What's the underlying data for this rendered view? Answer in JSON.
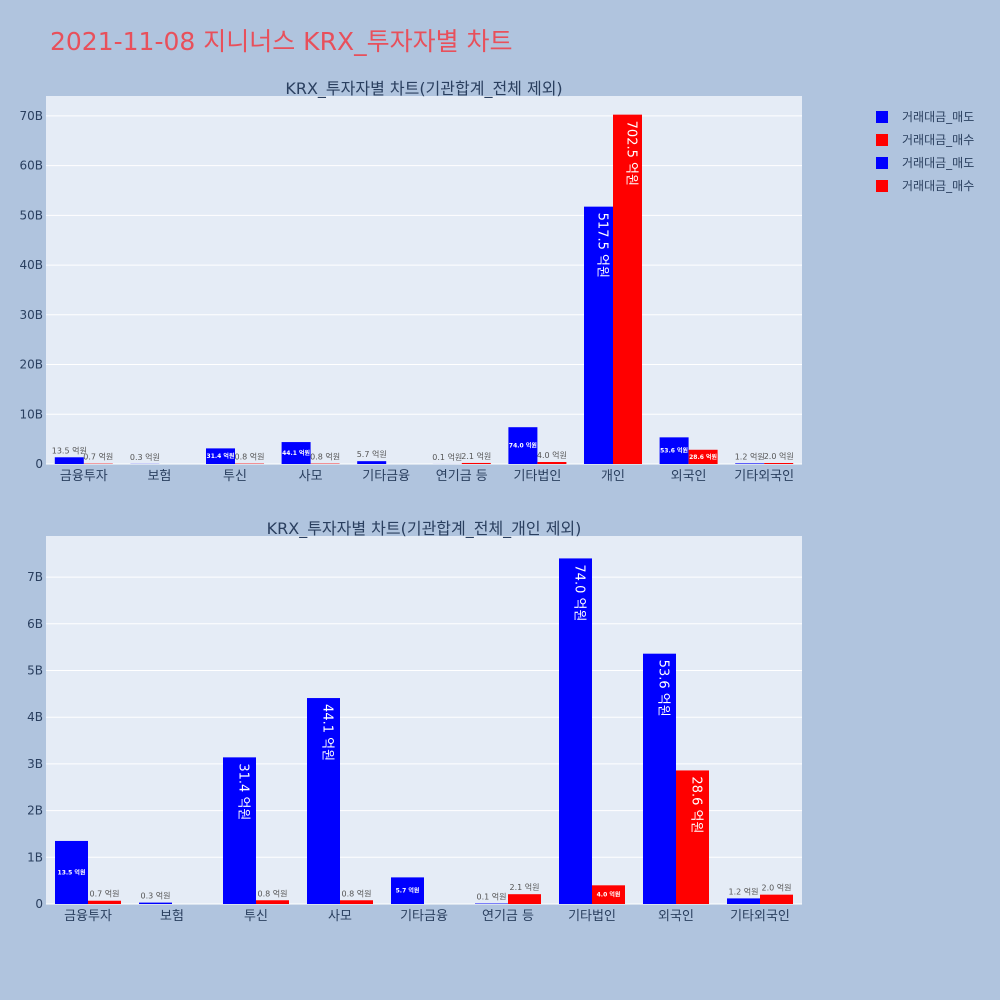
{
  "page_title": "2021-11-08 지니너스 KRX_투자자별 차트",
  "colors": {
    "sell": "#0000ff",
    "buy": "#ff0000",
    "background": "#b0c4de",
    "plot_bg": "#e5ecf6",
    "title": "#e8505b",
    "text": "#2a3f5f"
  },
  "legend": [
    {
      "label": "거래대금_매도",
      "color": "#0000ff"
    },
    {
      "label": "거래대금_매수",
      "color": "#ff0000"
    },
    {
      "label": "거래대금_매도",
      "color": "#0000ff"
    },
    {
      "label": "거래대금_매수",
      "color": "#ff0000"
    }
  ],
  "chart_data": [
    {
      "type": "bar",
      "title": "KRX_투자자별 차트(기관합계_전체 제외)",
      "categories": [
        "금융투자",
        "보험",
        "투신",
        "사모",
        "기타금융",
        "연기금 등",
        "기타법인",
        "개인",
        "외국인",
        "기타외국인"
      ],
      "series": [
        {
          "name": "거래대금_매도",
          "color": "#0000ff",
          "values": [
            1350000000,
            30000000,
            3140000000,
            4410000000,
            570000000,
            10000000,
            7400000000,
            51750000000,
            5360000000,
            120000000
          ],
          "labels": [
            "13.5 억원",
            "0.3 억원",
            "31.4 억원",
            "44.1 억원",
            "5.7 억원",
            "0.1 억원",
            "74.0 억원",
            "517.5 억원",
            "53.6 억원",
            "1.2 억원"
          ]
        },
        {
          "name": "거래대금_매수",
          "color": "#ff0000",
          "values": [
            70000000,
            0,
            80000000,
            80000000,
            0,
            210000000,
            400000000,
            70250000000,
            2860000000,
            200000000
          ],
          "labels": [
            "0.7 억원",
            "",
            "0.8 억원",
            "0.8 억원",
            "",
            "2.1 억원",
            "4.0 억원",
            "702.5 억원",
            "28.6 억원",
            "2.0 억원"
          ]
        }
      ],
      "ylim": [
        0,
        74000000000
      ],
      "yticks": [
        0,
        10000000000,
        20000000000,
        30000000000,
        40000000000,
        50000000000,
        60000000000,
        70000000000
      ],
      "ytick_labels": [
        "0",
        "10B",
        "20B",
        "30B",
        "40B",
        "50B",
        "60B",
        "70B"
      ],
      "grid": true
    },
    {
      "type": "bar",
      "title": "KRX_투자자별 차트(기관합계_전체_개인 제외)",
      "categories": [
        "금융투자",
        "보험",
        "투신",
        "사모",
        "기타금융",
        "연기금 등",
        "기타법인",
        "외국인",
        "기타외국인"
      ],
      "series": [
        {
          "name": "거래대금_매도",
          "color": "#0000ff",
          "values": [
            1350000000,
            30000000,
            3140000000,
            4410000000,
            570000000,
            10000000,
            7400000000,
            5360000000,
            120000000
          ],
          "labels": [
            "13.5 억원",
            "0.3 억원",
            "31.4 억원",
            "44.1 억원",
            "5.7 억원",
            "0.1 억원",
            "74.0 억원",
            "53.6 억원",
            "1.2 억원"
          ]
        },
        {
          "name": "거래대금_매수",
          "color": "#ff0000",
          "values": [
            70000000,
            0,
            80000000,
            80000000,
            0,
            210000000,
            400000000,
            2860000000,
            200000000
          ],
          "labels": [
            "0.7 억원",
            "",
            "0.8 억원",
            "0.8 억원",
            "",
            "2.1 억원",
            "4.0 억원",
            "28.6 억원",
            "2.0 억원"
          ]
        }
      ],
      "ylim": [
        0,
        7880000000
      ],
      "yticks": [
        0,
        1000000000,
        2000000000,
        3000000000,
        4000000000,
        5000000000,
        6000000000,
        7000000000
      ],
      "ytick_labels": [
        "0",
        "1B",
        "2B",
        "3B",
        "4B",
        "5B",
        "6B",
        "7B"
      ],
      "grid": true
    }
  ]
}
